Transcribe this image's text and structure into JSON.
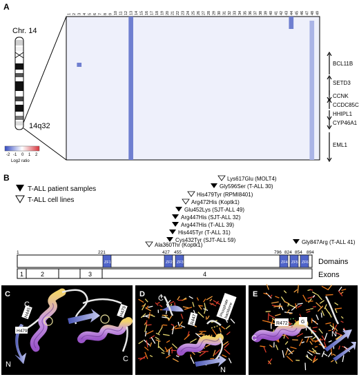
{
  "panel_a": {
    "label": "A",
    "chromosome": "Chr. 14",
    "band": "14q32",
    "legend_ticks": [
      "-2",
      "-1",
      "0",
      "1",
      "2"
    ],
    "legend_title": "Log2 ratio",
    "sample_numbers": [
      "1",
      "2",
      "3",
      "4",
      "5",
      "6",
      "7",
      "8",
      "9",
      "10",
      "11",
      "12",
      "13",
      "14",
      "15",
      "16",
      "17",
      "18",
      "19",
      "20",
      "21",
      "22",
      "23",
      "24",
      "25",
      "26",
      "27",
      "28",
      "29",
      "30",
      "31",
      "32",
      "33",
      "34",
      "35",
      "36",
      "37",
      "38",
      "39",
      "40",
      "41",
      "42",
      "43",
      "44",
      "45",
      "46",
      "47",
      "48",
      "49"
    ],
    "genes": [
      "BCL11B",
      "SETD3",
      "CCNK",
      "CCDC85C",
      "HHIPL1",
      "CYP46A1",
      "EML1"
    ],
    "colors": {
      "deep_loss": "#6f7fd0",
      "mild_loss": "#aab4e6",
      "background": "#eef0fb",
      "gain": "#d9333b"
    }
  },
  "panel_b": {
    "label": "B",
    "legend": [
      "T-ALL patient samples",
      "T-ALL cell lines"
    ],
    "mutations": [
      "Lys617Glu (MOLT4)",
      "Gly596Ser (T-ALL 30)",
      "His479Tyr (RPMI8401)",
      "Arg472His (Koptk1)",
      "Glu452Lys (SJT-ALL 49)",
      "Arg447His (SJT-ALL 32)",
      "Arg447His (T-ALL 39)",
      "His445Tyr (T-ALL 31)",
      "Cys432Tyr (SJT-ALL 59)",
      "Ala360Thr (Koptk1)",
      "Gly847Arg (T-ALL 41)"
    ],
    "positions": [
      "1",
      "221",
      "427",
      "455",
      "796",
      "824",
      "854",
      "894"
    ],
    "zinc_fingers": [
      "ZF1",
      "ZF2",
      "ZF3",
      "ZF4",
      "ZF5",
      "ZF6"
    ],
    "exons": [
      "1",
      "2",
      "3",
      "4"
    ],
    "track_labels": [
      "Domains",
      "Exons"
    ]
  },
  "panel_c": {
    "label": "C",
    "termini": [
      "C",
      "N",
      "C"
    ],
    "residues": [
      "H479",
      "H445",
      "H479"
    ]
  },
  "panel_d": {
    "label": "D",
    "termini": [
      "C",
      "N"
    ],
    "residues": [
      "R447"
    ],
    "callout": [
      "Phosphate",
      "backbone"
    ]
  },
  "panel_e": {
    "label": "E",
    "termini": [
      "C",
      "N"
    ],
    "residues": [
      "R472",
      "G"
    ]
  }
}
